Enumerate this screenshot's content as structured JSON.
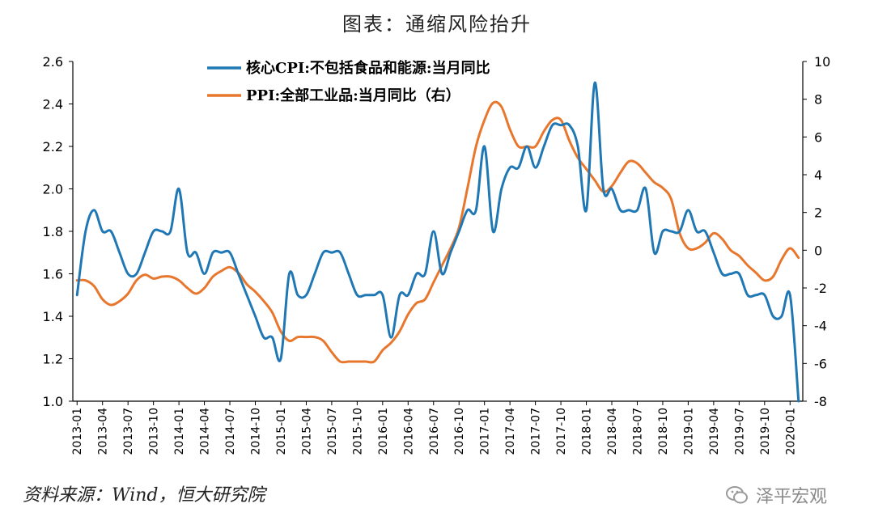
{
  "title": "图表：通缩风险抬升",
  "source": "资料来源：Wind，恒大研究院",
  "watermark": "泽平宏观",
  "colors": {
    "cpi": "#1f77b4",
    "ppi": "#e8772e",
    "axis": "#000000"
  },
  "chart_data": {
    "type": "line",
    "title": "图表：通缩风险抬升",
    "x": [
      "2013-01",
      "2013-02",
      "2013-03",
      "2013-04",
      "2013-05",
      "2013-06",
      "2013-07",
      "2013-08",
      "2013-09",
      "2013-10",
      "2013-11",
      "2013-12",
      "2014-01",
      "2014-02",
      "2014-03",
      "2014-04",
      "2014-05",
      "2014-06",
      "2014-07",
      "2014-08",
      "2014-09",
      "2014-10",
      "2014-11",
      "2014-12",
      "2015-01",
      "2015-02",
      "2015-03",
      "2015-04",
      "2015-05",
      "2015-06",
      "2015-07",
      "2015-08",
      "2015-09",
      "2015-10",
      "2015-11",
      "2015-12",
      "2016-01",
      "2016-02",
      "2016-03",
      "2016-04",
      "2016-05",
      "2016-06",
      "2016-07",
      "2016-08",
      "2016-09",
      "2016-10",
      "2016-11",
      "2016-12",
      "2017-01",
      "2017-02",
      "2017-03",
      "2017-04",
      "2017-05",
      "2017-06",
      "2017-07",
      "2017-08",
      "2017-09",
      "2017-10",
      "2017-11",
      "2017-12",
      "2018-01",
      "2018-02",
      "2018-03",
      "2018-04",
      "2018-05",
      "2018-06",
      "2018-07",
      "2018-08",
      "2018-09",
      "2018-10",
      "2018-11",
      "2018-12",
      "2019-01",
      "2019-02",
      "2019-03",
      "2019-04",
      "2019-05",
      "2019-06",
      "2019-07",
      "2019-08",
      "2019-09",
      "2019-10",
      "2019-11",
      "2019-12",
      "2020-01",
      "2020-02"
    ],
    "x_tick_labels": [
      "2013-01",
      "2013-04",
      "2013-07",
      "2013-10",
      "2014-01",
      "2014-04",
      "2014-07",
      "2014-10",
      "2015-01",
      "2015-04",
      "2015-07",
      "2015-10",
      "2016-01",
      "2016-04",
      "2016-07",
      "2016-10",
      "2017-01",
      "2017-04",
      "2017-07",
      "2017-10",
      "2018-01",
      "2018-04",
      "2018-07",
      "2018-10",
      "2019-01",
      "2019-04",
      "2019-07",
      "2019-10",
      "2020-01"
    ],
    "y_left": {
      "min": 1.0,
      "max": 2.6,
      "ticks": [
        "1.0",
        "1.2",
        "1.4",
        "1.6",
        "1.8",
        "2.0",
        "2.2",
        "2.4",
        "2.6"
      ]
    },
    "y_right": {
      "min": -8,
      "max": 10,
      "ticks": [
        "-8",
        "-6",
        "-4",
        "-2",
        "0",
        "2",
        "4",
        "6",
        "8",
        "10"
      ]
    },
    "series": [
      {
        "name": "核心CPI:不包括食品和能源:当月同比",
        "axis": "left",
        "values": [
          1.5,
          1.8,
          1.9,
          1.8,
          1.8,
          1.7,
          1.6,
          1.6,
          1.7,
          1.8,
          1.8,
          1.8,
          2.0,
          1.7,
          1.7,
          1.6,
          1.7,
          1.7,
          1.7,
          1.6,
          1.5,
          1.4,
          1.3,
          1.3,
          1.2,
          1.6,
          1.5,
          1.5,
          1.6,
          1.7,
          1.7,
          1.7,
          1.6,
          1.5,
          1.5,
          1.5,
          1.5,
          1.3,
          1.5,
          1.5,
          1.6,
          1.6,
          1.8,
          1.6,
          1.7,
          1.8,
          1.9,
          1.9,
          2.2,
          1.8,
          2.0,
          2.1,
          2.1,
          2.2,
          2.1,
          2.2,
          2.3,
          2.3,
          2.3,
          2.2,
          1.9,
          2.5,
          2.0,
          2.0,
          1.9,
          1.9,
          1.9,
          2.0,
          1.7,
          1.8,
          1.8,
          1.8,
          1.9,
          1.8,
          1.8,
          1.7,
          1.6,
          1.6,
          1.6,
          1.5,
          1.5,
          1.5,
          1.4,
          1.4,
          1.5,
          1.0
        ]
      },
      {
        "name": "PPI:全部工业品:当月同比（右）",
        "axis": "right",
        "values": [
          -1.6,
          -1.6,
          -1.9,
          -2.6,
          -2.9,
          -2.7,
          -2.3,
          -1.6,
          -1.3,
          -1.5,
          -1.4,
          -1.4,
          -1.6,
          -2.0,
          -2.3,
          -2.0,
          -1.4,
          -1.1,
          -0.9,
          -1.2,
          -1.8,
          -2.2,
          -2.7,
          -3.3,
          -4.3,
          -4.8,
          -4.6,
          -4.6,
          -4.6,
          -4.8,
          -5.4,
          -5.9,
          -5.9,
          -5.9,
          -5.9,
          -5.9,
          -5.3,
          -4.9,
          -4.3,
          -3.4,
          -2.8,
          -2.6,
          -1.7,
          -0.8,
          0.1,
          1.2,
          3.3,
          5.5,
          6.9,
          7.8,
          7.6,
          6.4,
          5.5,
          5.5,
          5.5,
          6.3,
          6.9,
          6.9,
          5.8,
          4.9,
          4.3,
          3.7,
          3.1,
          3.4,
          4.1,
          4.7,
          4.6,
          4.1,
          3.6,
          3.3,
          2.7,
          0.9,
          0.1,
          0.1,
          0.4,
          0.9,
          0.6,
          0.0,
          -0.3,
          -0.8,
          -1.2,
          -1.6,
          -1.4,
          -0.5,
          0.1,
          -0.4
        ]
      }
    ],
    "legend_position": "top-left",
    "grid": false
  }
}
